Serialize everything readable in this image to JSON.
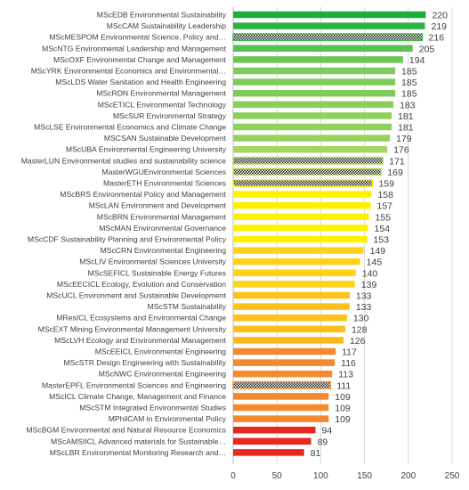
{
  "chart_data": {
    "type": "bar",
    "orientation": "horizontal",
    "categories": [
      "MScEDB Environmental Sustainability",
      "MScCAM Sustainability Leadership",
      "MScMESPOM Environmental Science, Policy and…",
      "MScNTG Environmental Leadership and Management",
      "MScOXF Environmental Change and Management",
      "MScYRK Environmental Economics and Environmental…",
      "MScLDS Water Sanitation and Health Engineering",
      "MScRDN Environmental Management",
      "MScETICL Environmental Technology",
      "MScSUR Environmental Strategy",
      "MScLSE Environmental Economics and Climate Change",
      "MSCSAN Sustainable Development",
      "MScUBA Environmental Engineering University",
      "MasterLUN Environmental studies and sustainability science",
      "MasterWGUEnvironmental Sciences",
      "MasterETH Environmental Sciences",
      "MScBRS Environmental Policy and Management",
      "MScLAN Environment and Development",
      "MScBRN Environmental Management",
      "MScMAN Environmental Governance",
      "MScCDF Sustainability Planning and Environmental Policy",
      "MScCRN Environmental Engineering",
      "MScLIV  Environmental Sciences University",
      "MScSEFICL Sustainable Energy Futures",
      "MScEECICL Ecology, Evolution and Conservation",
      "MScUCL Environment and Sustainable Development",
      "MScSTM Sustainability",
      "MResICL Ecosystems and Environmental Change",
      "MScEXT Mining Environmental Management University",
      "MScLVH Ecology and Environmental Management",
      "MScEEICL Environmental Engineering",
      "MScSTR Design Engineering with Sustainability",
      "MScNWC Environmental Engineering",
      "MasterEPFL Environmental Sciences and Engineering",
      "MScICL Climate Change, Management and Finance",
      "MScSTM Integrated Environmental Studies",
      "MPhilCAM in Environmental Policy",
      "MScBGM Environmental and Natural Resource Economics",
      "MScAMSIICL Advanced materials for Sustainable…",
      "MScLBR Environmental Monitoring Research and…"
    ],
    "values": [
      220,
      219,
      216,
      205,
      194,
      185,
      185,
      185,
      183,
      181,
      181,
      179,
      176,
      171,
      169,
      159,
      158,
      157,
      155,
      154,
      153,
      149,
      145,
      140,
      139,
      133,
      133,
      130,
      128,
      126,
      117,
      116,
      113,
      111,
      109,
      109,
      109,
      94,
      89,
      81
    ],
    "bar_colors": [
      "#1faa3a",
      "#2fb343",
      "#3fb94a",
      "#58c152",
      "#6cc656",
      "#7fcc5a",
      "#7fcc5a",
      "#7fcc5a",
      "#88cf5b",
      "#8fd15c",
      "#8fd15c",
      "#96d35d",
      "#a3d75e",
      "#b3dc5a",
      "#c8e555",
      "#fff200",
      "#fff200",
      "#fff200",
      "#fff200",
      "#fff200",
      "#fff200",
      "#ffd21a",
      "#ffd21a",
      "#ffd21a",
      "#ffd21a",
      "#ffc21a",
      "#ffc21a",
      "#ffc21a",
      "#ffbf1a",
      "#ffb81a",
      "#f5892e",
      "#f5892e",
      "#f5892e",
      "#f5892e",
      "#f5892e",
      "#f5892e",
      "#f5892e",
      "#e8281e",
      "#e8281e",
      "#e8281e"
    ],
    "hatched": [
      2,
      13,
      14,
      15,
      33
    ],
    "xlim": [
      0,
      250
    ],
    "x_ticks": [
      0,
      50,
      100,
      150,
      200,
      250
    ],
    "grid": true,
    "title": "",
    "xlabel": "",
    "ylabel": ""
  }
}
